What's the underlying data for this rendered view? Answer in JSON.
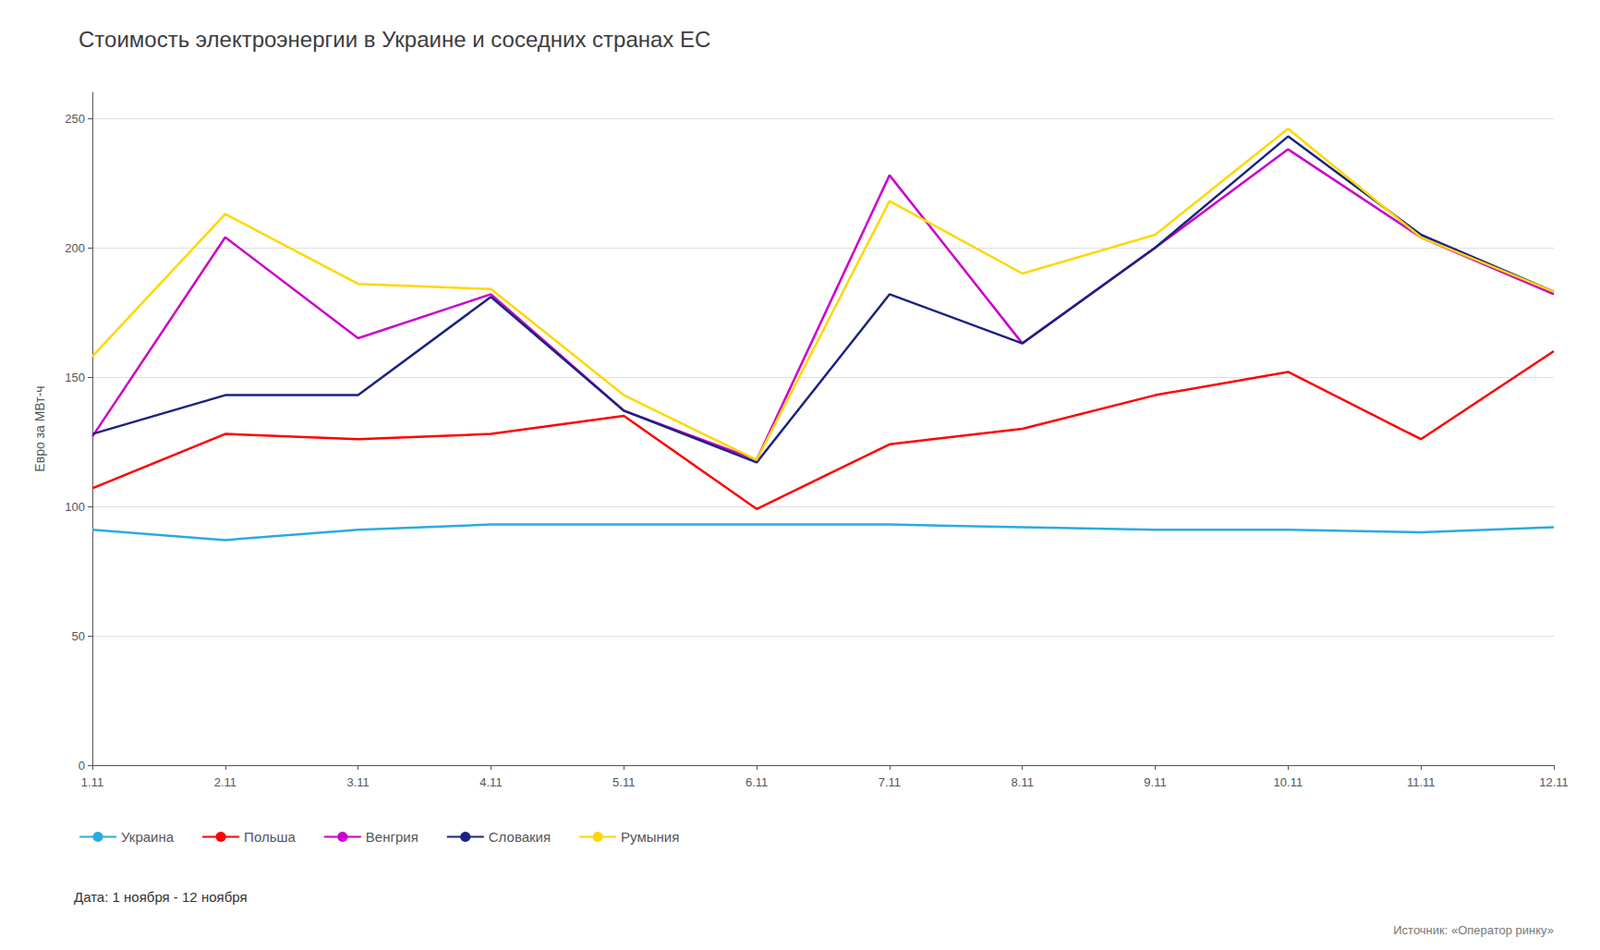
{
  "chart_data": {
    "type": "line",
    "title": "Стоимость электроэнергии в Украине и соседних странах ЕС",
    "ylabel": "Евро за МВт-ч",
    "annotations": [
      "Дата: 1 ноября - 12 ноября",
      "Источник: «Оператор ринку»"
    ],
    "categories": [
      "1.11",
      "2.11",
      "3.11",
      "4.11",
      "5.11",
      "6.11",
      "7.11",
      "8.11",
      "9.11",
      "10.11",
      "11.11",
      "12.11"
    ],
    "series": [
      {
        "name": "Украина",
        "color": "#29ABE2",
        "values": [
          91,
          87,
          91,
          93,
          93,
          93,
          93,
          92,
          91,
          91,
          90,
          92
        ]
      },
      {
        "name": "Польша",
        "color": "#FF0000",
        "values": [
          107,
          128,
          126,
          128,
          135,
          99,
          124,
          130,
          143,
          152,
          126,
          160
        ]
      },
      {
        "name": "Венгрия",
        "color": "#CC00CC",
        "values": [
          127,
          204,
          165,
          182,
          137,
          118,
          228,
          163,
          200,
          238,
          204,
          182
        ]
      },
      {
        "name": "Словакия",
        "color": "#1A237E",
        "values": [
          128,
          143,
          143,
          181,
          137,
          117,
          182,
          163,
          200,
          243,
          205,
          183
        ]
      },
      {
        "name": "Румыния",
        "color": "#FFD700",
        "values": [
          158,
          213,
          186,
          184,
          143,
          118,
          218,
          190,
          205,
          246,
          204,
          183
        ]
      }
    ],
    "ylim": [
      0,
      260
    ],
    "yticks": [
      0,
      50,
      100,
      150,
      200,
      250
    ],
    "grid": true,
    "legend": "bottom"
  }
}
